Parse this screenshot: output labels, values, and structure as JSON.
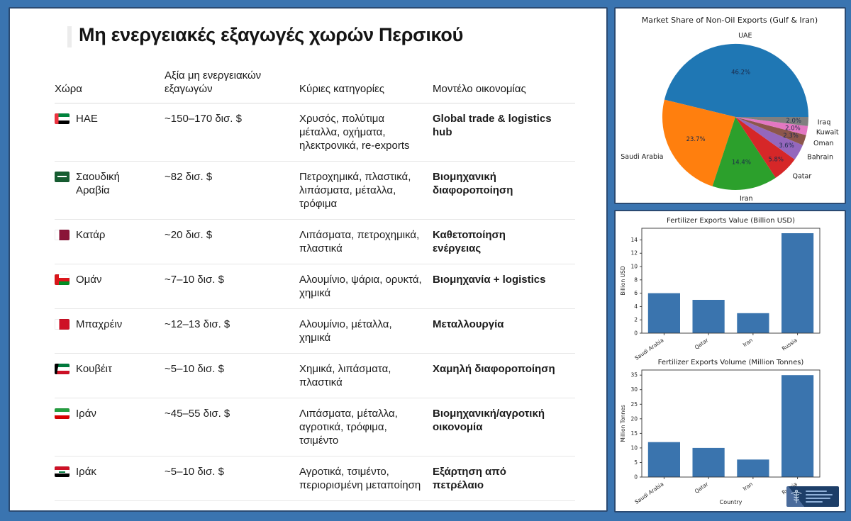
{
  "left_panel": {
    "title": "Μη ενεργειακές εξαγωγές χωρών Περσικού",
    "table": {
      "headers": [
        "Χώρα",
        "Αξία μη ενεργειακών εξαγωγών",
        "Κύριες κατηγορίες",
        "Μοντέλο οικονομίας"
      ],
      "rows": [
        {
          "flag": "uae",
          "country": "ΗΑΕ",
          "value": "~150–170 δισ. $",
          "categories": "Χρυσός, πολύτιμα μέταλλα, οχήματα, ηλεκτρονικά, re-exports",
          "model": "Global trade & logistics hub"
        },
        {
          "flag": "sau",
          "country": "Σαουδική Αραβία",
          "value": "~82 δισ. $",
          "categories": "Πετροχημικά, πλαστικά, λιπάσματα, μέταλλα, τρόφιμα",
          "model": "Βιομηχανική διαφοροποίηση"
        },
        {
          "flag": "qat",
          "country": "Κατάρ",
          "value": "~20 δισ. $",
          "categories": "Λιπάσματα, πετροχημικά, πλαστικά",
          "model": "Καθετοποίηση ενέργειας"
        },
        {
          "flag": "omn",
          "country": "Ομάν",
          "value": "~7–10 δισ. $",
          "categories": "Αλουμίνιο, ψάρια, ορυκτά, χημικά",
          "model": "Βιομηχανία + logistics"
        },
        {
          "flag": "bhr",
          "country": "Μπαχρέιν",
          "value": "~12–13 δισ. $",
          "categories": "Αλουμίνιο, μέταλλα, χημικά",
          "model": "Μεταλλουργία"
        },
        {
          "flag": "kwt",
          "country": "Κουβέιτ",
          "value": "~5–10 δισ. $",
          "categories": "Χημικά, λιπάσματα, πλαστικά",
          "model": "Χαμηλή διαφοροποίηση"
        },
        {
          "flag": "irn",
          "country": "Ιράν",
          "value": "~45–55 δισ. $",
          "categories": "Λιπάσματα, μέταλλα, αγροτικά, τρόφιμα, τσιμέντο",
          "model": "Βιομηχανική/αγροτική οικονομία"
        },
        {
          "flag": "irq",
          "country": "Ιράκ",
          "value": "~5–10 δισ. $",
          "categories": "Αγροτικά, τσιμέντο, περιορισμένη μεταποίηση",
          "model": "Εξάρτηση από πετρέλαιο"
        }
      ]
    }
  },
  "chart_data": [
    {
      "type": "pie",
      "title": "Market Share of Non-Oil Exports (Gulf & Iran)",
      "labels": [
        "UAE",
        "Saudi Arabia",
        "Iran",
        "Qatar",
        "Bahrain",
        "Oman",
        "Kuwait",
        "Iraq"
      ],
      "values": [
        46.2,
        23.7,
        14.4,
        5.8,
        3.6,
        2.3,
        2.0,
        2.0
      ],
      "colors": [
        "#1f77b4",
        "#ff7f0e",
        "#2ca02c",
        "#d62728",
        "#9467bd",
        "#8c564b",
        "#e377c2",
        "#7f7f7f"
      ],
      "start_angle_deg": 0,
      "direction": "counterclockwise",
      "label_style": "percent-inside-names-outside"
    },
    {
      "type": "bar",
      "title": "Fertilizer Exports Value (Billion USD)",
      "categories": [
        "Saudi Arabia",
        "Qatar",
        "Iran",
        "Russia"
      ],
      "values": [
        6,
        5,
        3,
        15
      ],
      "ylabel": "Billion USD",
      "xlabel": "",
      "yticks": [
        0,
        2,
        4,
        6,
        8,
        10,
        12,
        14
      ],
      "ylim": [
        0,
        15.75
      ],
      "bar_color": "#3a74ae",
      "grid": false
    },
    {
      "type": "bar",
      "title": "Fertilizer Exports Volume (Million Tonnes)",
      "categories": [
        "Saudi Arabia",
        "Qatar",
        "Iran",
        "Russia"
      ],
      "values": [
        12,
        10,
        6,
        35
      ],
      "ylabel": "Million Tonnes",
      "xlabel": "Country",
      "yticks": [
        0,
        5,
        10,
        15,
        20,
        25,
        30,
        35
      ],
      "ylim": [
        0,
        36.75
      ],
      "bar_color": "#3a74ae",
      "grid": false
    }
  ],
  "logo": {
    "icon": "caduceus",
    "text_lines": 4
  },
  "colors": {
    "frame": "#3a74b0",
    "card_border": "#2a4a72",
    "row_divider": "#e7e7e7",
    "text": "#1c1c1c"
  }
}
